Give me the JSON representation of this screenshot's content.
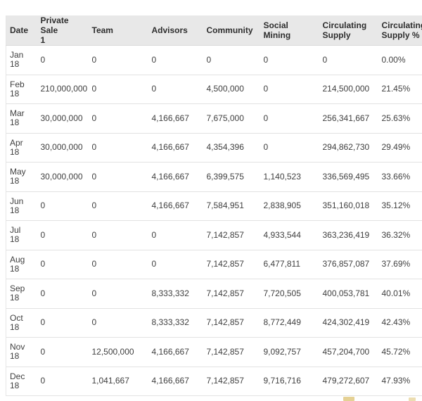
{
  "table": {
    "columns": [
      "Date",
      "Private Sale\n1",
      "Team",
      "Advisors",
      "Community",
      "Social Mining",
      "Circulating\nSupply",
      "Circulating\nSupply %"
    ],
    "rows": [
      {
        "cells": [
          "Jan\n18",
          "0",
          "0",
          "0",
          "0",
          "0",
          "0",
          "0.00%"
        ]
      },
      {
        "cells": [
          "Feb\n18",
          "210,000,000",
          "0",
          "0",
          "4,500,000",
          "0",
          "214,500,000",
          "21.45%"
        ]
      },
      {
        "cells": [
          "Mar\n18",
          "30,000,000",
          "0",
          "4,166,667",
          "7,675,000",
          "0",
          "256,341,667",
          "25.63%"
        ]
      },
      {
        "cells": [
          "Apr\n18",
          "30,000,000",
          "0",
          "4,166,667",
          "4,354,396",
          "0",
          "294,862,730",
          "29.49%"
        ]
      },
      {
        "cells": [
          "May\n18",
          "30,000,000",
          "0",
          "4,166,667",
          "6,399,575",
          "1,140,523",
          "336,569,495",
          "33.66%"
        ]
      },
      {
        "cells": [
          "Jun\n18",
          "0",
          "0",
          "4,166,667",
          "7,584,951",
          "2,838,905",
          "351,160,018",
          "35.12%"
        ]
      },
      {
        "cells": [
          "Jul\n18",
          "0",
          "0",
          "0",
          "7,142,857",
          "4,933,544",
          "363,236,419",
          "36.32%"
        ]
      },
      {
        "cells": [
          "Aug\n18",
          "0",
          "0",
          "0",
          "7,142,857",
          "6,477,811",
          "376,857,087",
          "37.69%"
        ]
      },
      {
        "cells": [
          "Sep\n18",
          "0",
          "0",
          "8,333,332",
          "7,142,857",
          "7,720,505",
          "400,053,781",
          "40.01%"
        ]
      },
      {
        "cells": [
          "Oct\n18",
          "0",
          "0",
          "8,333,332",
          "7,142,857",
          "8,772,449",
          "424,302,419",
          "42.43%"
        ]
      },
      {
        "cells": [
          "Nov\n18",
          "0",
          "12,500,000",
          "4,166,667",
          "7,142,857",
          "9,092,757",
          "457,204,700",
          "45.72%"
        ]
      },
      {
        "cells": [
          "Dec\n18",
          "0",
          "1,041,667",
          "4,166,667",
          "7,142,857",
          "9,716,716",
          "479,272,607",
          "47.93%"
        ]
      }
    ]
  },
  "chart_data": {
    "type": "table",
    "columns": [
      "Date",
      "Private Sale 1",
      "Team",
      "Advisors",
      "Community",
      "Social Mining",
      "Circulating Supply",
      "Circulating Supply %"
    ],
    "rows": [
      [
        "Jan 18",
        0,
        0,
        0,
        0,
        0,
        0,
        "0.00%"
      ],
      [
        "Feb 18",
        210000000,
        0,
        0,
        4500000,
        0,
        214500000,
        "21.45%"
      ],
      [
        "Mar 18",
        30000000,
        0,
        4166667,
        7675000,
        0,
        256341667,
        "25.63%"
      ],
      [
        "Apr 18",
        30000000,
        0,
        4166667,
        4354396,
        0,
        294862730,
        "29.49%"
      ],
      [
        "May 18",
        30000000,
        0,
        4166667,
        6399575,
        1140523,
        336569495,
        "33.66%"
      ],
      [
        "Jun 18",
        0,
        0,
        4166667,
        7584951,
        2838905,
        351160018,
        "35.12%"
      ],
      [
        "Jul 18",
        0,
        0,
        0,
        7142857,
        4933544,
        363236419,
        "36.32%"
      ],
      [
        "Aug 18",
        0,
        0,
        0,
        7142857,
        6477811,
        376857087,
        "37.69%"
      ],
      [
        "Sep 18",
        0,
        0,
        8333332,
        7142857,
        7720505,
        400053781,
        "40.01%"
      ],
      [
        "Oct 18",
        0,
        0,
        8333332,
        7142857,
        8772449,
        424302419,
        "42.43%"
      ],
      [
        "Nov 18",
        0,
        12500000,
        4166667,
        7142857,
        9092757,
        457204700,
        "45.72%"
      ],
      [
        "Dec 18",
        0,
        1041667,
        4166667,
        7142857,
        9716716,
        479272607,
        "47.93%"
      ]
    ]
  },
  "colors": {
    "header_bg": "#e8e8e8",
    "header_text": "#2e2e2e",
    "body_text": "#3f3f3f",
    "row_border": "#e2e2e2",
    "watermark_gold": "#d0ab3c"
  }
}
